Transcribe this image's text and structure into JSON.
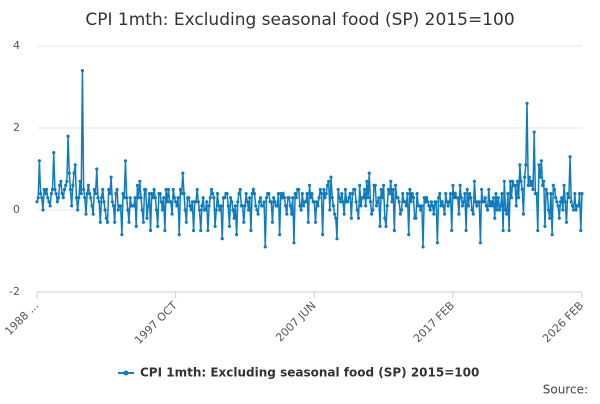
{
  "chart_data": {
    "type": "line",
    "title": "CPI 1mth: Excluding seasonal food (SP) 2015=100",
    "source": "Source:",
    "ylim": [
      -2,
      4
    ],
    "yticks": [
      -2,
      0,
      2,
      4
    ],
    "grid": true,
    "categories": [
      "1988 ...",
      null,
      null,
      null,
      null,
      null,
      null,
      null,
      null,
      null,
      null,
      null,
      null,
      null,
      null,
      null,
      null,
      null,
      null,
      null,
      null,
      null,
      null,
      null,
      null,
      null,
      null,
      null,
      null,
      null,
      null,
      null,
      null,
      null,
      null,
      null,
      null,
      null,
      null,
      null,
      null,
      null,
      null,
      null,
      null,
      null,
      null,
      null,
      null,
      null,
      null,
      null,
      null,
      null,
      null,
      null,
      null,
      null,
      null,
      null,
      null,
      null,
      null,
      null,
      null,
      null,
      null,
      null,
      null,
      null,
      null,
      null,
      null,
      null,
      null,
      null,
      null,
      null,
      null,
      null,
      null,
      null,
      null,
      null,
      null,
      null,
      null,
      null,
      null,
      null,
      null,
      null,
      null,
      null,
      null,
      null,
      null,
      null,
      null,
      null,
      null,
      null,
      null,
      null,
      null,
      null,
      null,
      null,
      null,
      null,
      null,
      null,
      null,
      null,
      null,
      null,
      "1997 OCT",
      null,
      null,
      null,
      null,
      null,
      null,
      null,
      null,
      null,
      null,
      null,
      null,
      null,
      null,
      null,
      null,
      null,
      null,
      null,
      null,
      null,
      null,
      null,
      null,
      null,
      null,
      null,
      null,
      null,
      null,
      null,
      null,
      null,
      null,
      null,
      null,
      null,
      null,
      null,
      null,
      null,
      null,
      null,
      null,
      null,
      null,
      null,
      null,
      null,
      null,
      null,
      null,
      null,
      null,
      null,
      null,
      null,
      null,
      null,
      null,
      null,
      null,
      null,
      null,
      null,
      null,
      null,
      null,
      null,
      null,
      null,
      null,
      null,
      null,
      null,
      null,
      null,
      null,
      null,
      null,
      null,
      null,
      null,
      null,
      null,
      null,
      null,
      null,
      null,
      null,
      null,
      null,
      null,
      null,
      null,
      null,
      null,
      null,
      null,
      null,
      null,
      null,
      null,
      null,
      null,
      null,
      null,
      null,
      null,
      null,
      null,
      null,
      null,
      null,
      null,
      "2007 JUN",
      null,
      null,
      null,
      null,
      null,
      null,
      null,
      null,
      null,
      null,
      null,
      null,
      null,
      null,
      null,
      null,
      null,
      null,
      null,
      null,
      null,
      null,
      null,
      null,
      null,
      null,
      null,
      null,
      null,
      null,
      null,
      null,
      null,
      null,
      null,
      null,
      null,
      null,
      null,
      null,
      null,
      null,
      null,
      null,
      null,
      null,
      null,
      null,
      null,
      null,
      null,
      null,
      null,
      null,
      null,
      null,
      null,
      null,
      null,
      null,
      null,
      null,
      null,
      null,
      null,
      null,
      null,
      null,
      null,
      null,
      null,
      null,
      null,
      null,
      null,
      null,
      null,
      null,
      null,
      null,
      null,
      null,
      null,
      null,
      null,
      null,
      null,
      null,
      null,
      null,
      null,
      null,
      null,
      null,
      null,
      null,
      null,
      null,
      null,
      null,
      null,
      null,
      null,
      null,
      null,
      null,
      null,
      null,
      null,
      null,
      null,
      null,
      null,
      null,
      null,
      "2017 FEB",
      null,
      null,
      null,
      null,
      null,
      null,
      null,
      null,
      null,
      null,
      null,
      null,
      null,
      null,
      null,
      null,
      null,
      null,
      null,
      null,
      null,
      null,
      null,
      null,
      null,
      null,
      null,
      null,
      null,
      null,
      null,
      null,
      null,
      null,
      null,
      null,
      null,
      null,
      null,
      null,
      null,
      null,
      null,
      null,
      null,
      null,
      null,
      null,
      null,
      null,
      null,
      null,
      null,
      null,
      null,
      null,
      null,
      null,
      null,
      null,
      null,
      null,
      null,
      null,
      null,
      null,
      null,
      null,
      null,
      null,
      null,
      null,
      null,
      null,
      null,
      null,
      null,
      null,
      null,
      null,
      null,
      null,
      null,
      null,
      null,
      null,
      null,
      null,
      null,
      null,
      null,
      null,
      null,
      null,
      null,
      null,
      null,
      null,
      null,
      null,
      null,
      null,
      null,
      null,
      null,
      null,
      null,
      "2026 FEB"
    ],
    "series": [
      {
        "name": "CPI 1mth: Excluding seasonal food (SP) 2015=100",
        "color": "#0f7cc0",
        "values": [
          0.2,
          0.3,
          1.2,
          0.4,
          0.3,
          0.0,
          0.5,
          0.4,
          0.5,
          0.3,
          0.2,
          0.1,
          0.4,
          0.5,
          1.4,
          0.5,
          0.4,
          0.2,
          0.3,
          0.6,
          0.7,
          0.4,
          0.3,
          0.5,
          0.6,
          0.7,
          1.8,
          0.9,
          0.5,
          0.1,
          0.6,
          0.9,
          1.1,
          0.3,
          0.0,
          0.3,
          0.7,
          0.4,
          3.4,
          0.5,
          0.3,
          -0.1,
          0.4,
          0.6,
          0.4,
          0.3,
          0.1,
          -0.1,
          0.5,
          0.4,
          1.0,
          0.3,
          0.2,
          -0.3,
          0.3,
          0.5,
          0.2,
          0.0,
          -0.2,
          -0.3,
          0.5,
          0.4,
          0.8,
          0.2,
          0.1,
          -0.3,
          0.4,
          0.5,
          0.0,
          0.1,
          0.1,
          -0.6,
          0.4,
          0.3,
          1.2,
          0.3,
          0.0,
          -0.3,
          0.3,
          0.1,
          0.1,
          0.1,
          0.3,
          -0.4,
          0.6,
          0.3,
          0.7,
          0.3,
          0.0,
          -0.3,
          0.5,
          0.5,
          -0.2,
          0.1,
          0.4,
          -0.5,
          0.4,
          0.3,
          0.5,
          0.3,
          0.0,
          -0.4,
          0.4,
          0.4,
          0.2,
          0.0,
          0.3,
          -0.5,
          0.5,
          0.2,
          0.5,
          0.2,
          0.2,
          -0.1,
          0.5,
          0.3,
          0.2,
          0.1,
          0.3,
          -0.6,
          0.5,
          0.4,
          0.9,
          0.4,
          0.0,
          -0.3,
          0.3,
          0.3,
          0.1,
          0.0,
          0.2,
          -0.5,
          0.2,
          0.2,
          0.5,
          0.2,
          0.0,
          -0.5,
          0.1,
          0.3,
          0.0,
          0.0,
          0.2,
          -0.5,
          0.1,
          0.3,
          0.5,
          0.4,
          0.3,
          -0.4,
          0.0,
          0.4,
          0.1,
          0.0,
          0.1,
          -0.7,
          0.3,
          0.3,
          0.4,
          0.4,
          0.1,
          -0.4,
          0.3,
          0.2,
          0.0,
          -0.2,
          0.1,
          -0.6,
          0.2,
          0.4,
          0.5,
          0.1,
          0.1,
          -0.3,
          0.1,
          0.4,
          0.2,
          0.0,
          0.3,
          -0.5,
          0.4,
          0.5,
          0.4,
          0.1,
          0.0,
          -0.1,
          0.2,
          0.3,
          0.1,
          0.1,
          0.2,
          -0.9,
          0.3,
          0.4,
          0.4,
          0.2,
          0.2,
          -0.3,
          0.3,
          0.2,
          0.1,
          0.1,
          0.4,
          -0.6,
          0.4,
          0.3,
          0.4,
          0.3,
          0.1,
          -0.1,
          0.3,
          0.3,
          0.1,
          -0.1,
          0.3,
          -0.8,
          0.4,
          0.3,
          0.5,
          0.5,
          0.1,
          0.0,
          0.4,
          0.1,
          0.2,
          0.2,
          0.4,
          -0.3,
          0.6,
          0.3,
          0.4,
          0.2,
          0.2,
          -0.3,
          0.2,
          0.1,
          0.3,
          0.5,
          0.4,
          -0.6,
          0.5,
          0.3,
          0.4,
          0.6,
          0.7,
          0.0,
          0.8,
          0.3,
          0.1,
          -0.1,
          -0.2,
          -0.7,
          0.5,
          0.3,
          0.2,
          0.4,
          0.2,
          -0.1,
          0.5,
          0.2,
          0.2,
          0.3,
          0.4,
          -0.2,
          0.4,
          0.5,
          0.5,
          0.2,
          0.0,
          -0.2,
          0.6,
          0.1,
          0.3,
          0.3,
          0.5,
          0.1,
          0.7,
          0.3,
          0.9,
          0.2,
          -0.1,
          0.0,
          0.6,
          0.6,
          0.1,
          0.2,
          0.3,
          -0.4,
          0.5,
          0.3,
          0.6,
          -0.2,
          -0.4,
          0.1,
          0.5,
          0.4,
          0.7,
          0.2,
          0.5,
          -0.5,
          0.6,
          0.3,
          0.3,
          0.2,
          -0.1,
          0.0,
          0.4,
          0.2,
          0.2,
          0.1,
          0.4,
          -0.6,
          0.5,
          0.2,
          0.4,
          0.3,
          -0.2,
          -0.2,
          0.4,
          0.1,
          0.1,
          0.0,
          0.1,
          -0.9,
          0.3,
          0.2,
          0.3,
          0.2,
          0.1,
          0.0,
          0.2,
          0.1,
          -0.1,
          0.2,
          0.2,
          -0.8,
          0.3,
          0.4,
          0.1,
          0.2,
          0.1,
          -0.1,
          0.4,
          0.2,
          0.1,
          0.2,
          0.4,
          -0.5,
          0.6,
          0.3,
          0.4,
          0.3,
          0.3,
          -0.1,
          0.6,
          0.3,
          0.1,
          0.2,
          0.4,
          -0.5,
          0.5,
          0.1,
          0.4,
          0.3,
          0.0,
          -0.1,
          0.7,
          0.2,
          0.1,
          0.2,
          0.2,
          -0.8,
          0.5,
          0.2,
          0.2,
          0.3,
          0.1,
          0.0,
          0.5,
          0.1,
          0.2,
          0.1,
          0.3,
          -0.2,
          0.4,
          0.0,
          0.3,
          0.0,
          0.1,
          0.4,
          -0.5,
          0.7,
          0.0,
          -0.1,
          0.4,
          -0.5,
          0.7,
          0.3,
          0.7,
          0.6,
          0.6,
          0.1,
          0.7,
          0.3,
          1.1,
          0.7,
          0.5,
          -0.1,
          0.8,
          1.1,
          2.6,
          0.6,
          0.8,
          0.6,
          0.7,
          0.5,
          1.9,
          0.4,
          0.4,
          -0.5,
          1.1,
          0.8,
          1.2,
          0.6,
          0.7,
          -0.4,
          0.5,
          0.4,
          0.0,
          -0.2,
          0.4,
          -0.6,
          0.6,
          0.5,
          0.3,
          0.2,
          0.1,
          -0.2,
          0.2,
          0.3,
          0.0,
          0.6,
          0.2,
          -0.3,
          0.4,
          0.3,
          1.3,
          0.2,
          0.1,
          0.0,
          0.4,
          0.0,
          0.1,
          0.1,
          0.4,
          -0.5,
          0.4
        ]
      }
    ]
  }
}
